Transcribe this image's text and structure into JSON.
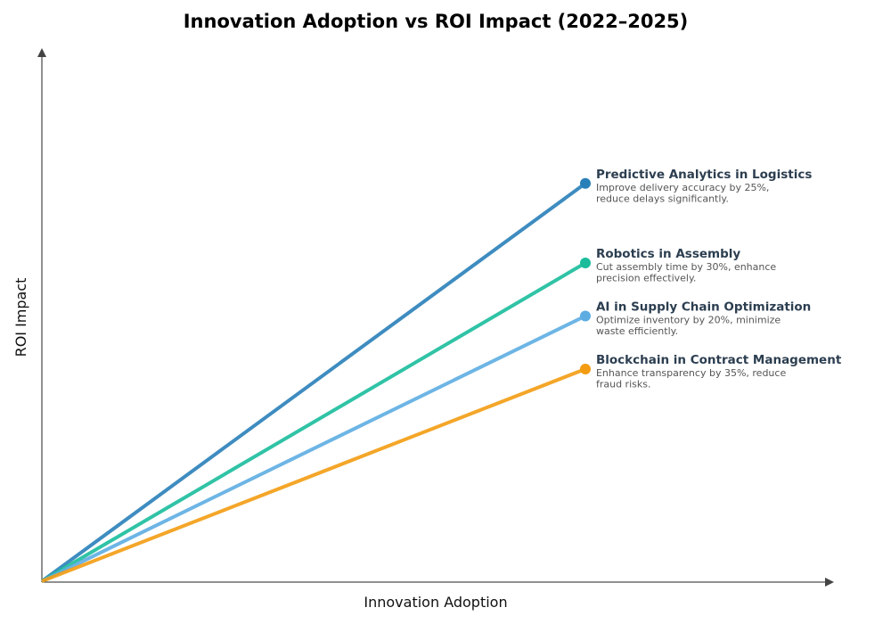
{
  "chart_data": {
    "type": "line",
    "title": "Innovation Adoption vs ROI Impact (2022–2025)",
    "xlabel": "Innovation Adoption",
    "ylabel": "ROI Impact",
    "grid": false,
    "ticks": false,
    "series": [
      {
        "name": "Predictive Analytics in Logistics",
        "description": [
          "Improve delivery accuracy by 25%,",
          "reduce delays significantly."
        ],
        "color": "#2980b9",
        "x": [
          0,
          0.7
        ],
        "y": [
          0,
          0.75
        ]
      },
      {
        "name": "Robotics in Assembly",
        "description": [
          "Cut assembly time by 30%, enhance",
          "precision effectively."
        ],
        "color": "#1abc9c",
        "x": [
          0,
          0.7
        ],
        "y": [
          0,
          0.6
        ]
      },
      {
        "name": "AI in Supply Chain Optimization",
        "description": [
          "Optimize inventory by 20%, minimize",
          "waste efficiently."
        ],
        "color": "#5dade2",
        "x": [
          0,
          0.7
        ],
        "y": [
          0,
          0.5
        ]
      },
      {
        "name": "Blockchain in Contract Management",
        "description": [
          "Enhance transparency by 35%, reduce",
          "fraud risks."
        ],
        "color": "#f39c12",
        "x": [
          0,
          0.7
        ],
        "y": [
          0,
          0.4
        ]
      }
    ]
  }
}
